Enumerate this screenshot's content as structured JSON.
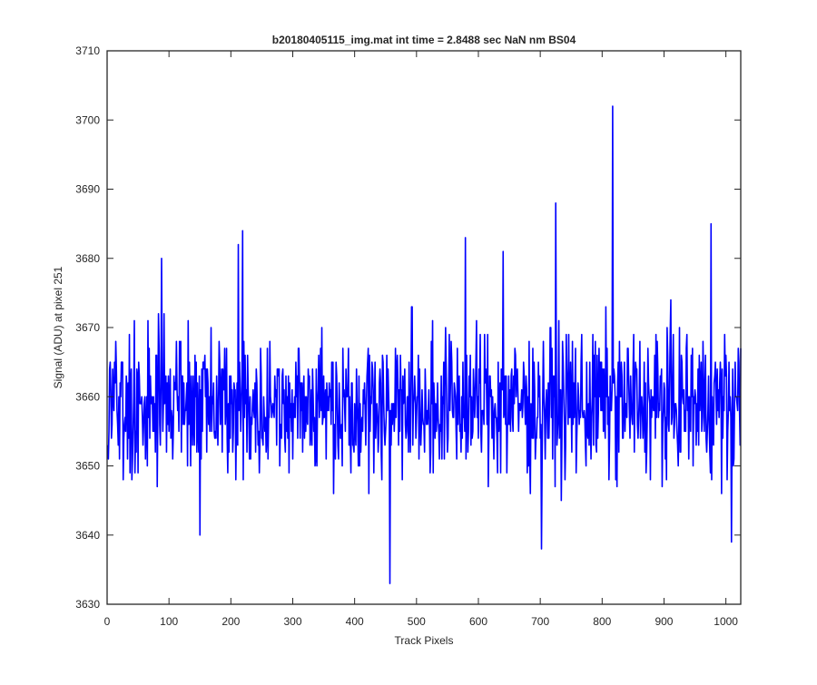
{
  "chart_data": {
    "type": "line",
    "title": "b20180405115_img.mat int time = 2.8488 sec  NaN nm BS04",
    "xlabel": "Track Pixels",
    "ylabel": "Signal (ADU) at pixel 251",
    "xlim": [
      0,
      1024
    ],
    "ylim": [
      3630,
      3710
    ],
    "xticks": [
      0,
      100,
      200,
      300,
      400,
      500,
      600,
      700,
      800,
      900,
      1000
    ],
    "yticks": [
      3630,
      3640,
      3650,
      3660,
      3670,
      3680,
      3690,
      3700,
      3710
    ],
    "grid": false,
    "line_color": "#0000ff",
    "series": [
      {
        "x_start": 1,
        "x_step": 1,
        "noise_center": 3659,
        "noise_range": [
          3639,
          3688
        ],
        "notable_points": [
          {
            "x": 457,
            "y": 3633
          },
          {
            "x": 702,
            "y": 3638
          },
          {
            "x": 817,
            "y": 3702
          },
          {
            "x": 725,
            "y": 3688
          },
          {
            "x": 219,
            "y": 3684
          },
          {
            "x": 976,
            "y": 3685
          },
          {
            "x": 1009,
            "y": 3639
          },
          {
            "x": 150,
            "y": 3640
          },
          {
            "x": 88,
            "y": 3680
          },
          {
            "x": 212,
            "y": 3682
          },
          {
            "x": 579,
            "y": 3683
          },
          {
            "x": 640,
            "y": 3681
          }
        ]
      }
    ]
  }
}
